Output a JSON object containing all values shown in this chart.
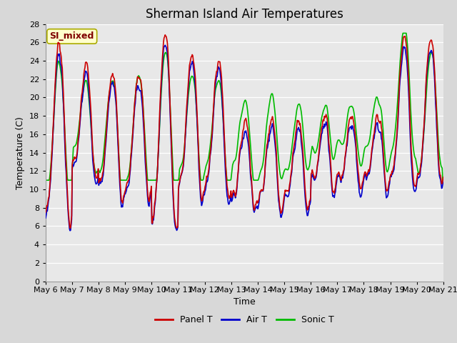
{
  "title": "Sherman Island Air Temperatures",
  "xlabel": "Time",
  "ylabel": "Temperature (C)",
  "ylim": [
    0,
    28
  ],
  "yticks": [
    0,
    2,
    4,
    6,
    8,
    10,
    12,
    14,
    16,
    18,
    20,
    22,
    24,
    26,
    28
  ],
  "x_labels": [
    "May 6",
    "May 7",
    "May 8",
    "May 9",
    "May 10",
    "May 11",
    "May 12",
    "May 13",
    "May 14",
    "May 15",
    "May 16",
    "May 17",
    "May 18",
    "May 19",
    "May 20",
    "May 21"
  ],
  "panel_color": "#cc0000",
  "air_color": "#0000cc",
  "sonic_color": "#00bb00",
  "bg_color": "#d8d8d8",
  "plot_bg": "#e8e8e8",
  "annotation_text": "SI_mixed",
  "annotation_color": "#800000",
  "annotation_bg": "#ffffcc",
  "legend_labels": [
    "Panel T",
    "Air T",
    "Sonic T"
  ],
  "title_fontsize": 12,
  "axis_fontsize": 9,
  "tick_fontsize": 8,
  "linewidth": 1.2
}
